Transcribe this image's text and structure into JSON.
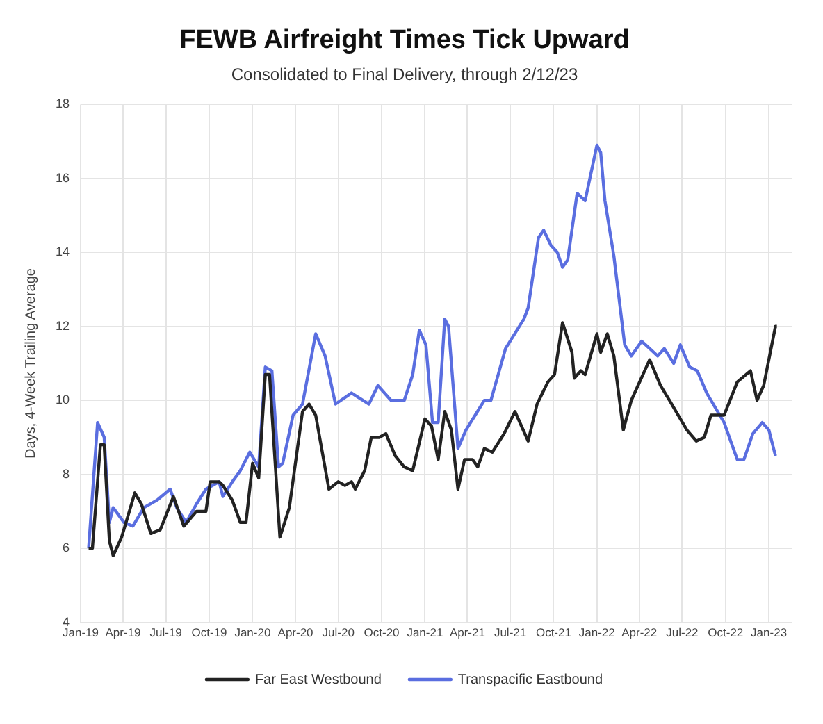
{
  "chart_data": {
    "type": "line",
    "title": "FEWB Airfreight Times Tick Upward",
    "subtitle": "Consolidated to Final Delivery, through 2/12/23",
    "ylabel": "Days, 4-Week Trailing Average",
    "xlim": [
      "2019-01-01",
      "2023-02-20"
    ],
    "xticks": [
      {
        "value": "2019-01-01",
        "label": "Jan-19"
      },
      {
        "value": "2019-04-01",
        "label": "Apr-19"
      },
      {
        "value": "2019-07-01",
        "label": "Jul-19"
      },
      {
        "value": "2019-10-01",
        "label": "Oct-19"
      },
      {
        "value": "2020-01-01",
        "label": "Jan-20"
      },
      {
        "value": "2020-04-01",
        "label": "Apr-20"
      },
      {
        "value": "2020-07-01",
        "label": "Jul-20"
      },
      {
        "value": "2020-10-01",
        "label": "Oct-20"
      },
      {
        "value": "2021-01-01",
        "label": "Jan-21"
      },
      {
        "value": "2021-04-01",
        "label": "Apr-21"
      },
      {
        "value": "2021-07-01",
        "label": "Jul-21"
      },
      {
        "value": "2021-10-01",
        "label": "Oct-21"
      },
      {
        "value": "2022-01-01",
        "label": "Jan-22"
      },
      {
        "value": "2022-04-01",
        "label": "Apr-22"
      },
      {
        "value": "2022-07-01",
        "label": "Jul-22"
      },
      {
        "value": "2022-10-01",
        "label": "Oct-22"
      },
      {
        "value": "2023-01-01",
        "label": "Jan-23"
      }
    ],
    "ylim": [
      4,
      18
    ],
    "yticks": [
      4,
      6,
      8,
      10,
      12,
      14,
      16,
      18
    ],
    "grid": true,
    "legend": "bottom",
    "marker": "none",
    "line_style": "solid",
    "series": [
      {
        "name": "Far East Westbound",
        "color": "#222222",
        "x": [
          "2019-01-18",
          "2019-01-26",
          "2019-02-12",
          "2019-02-20",
          "2019-03-03",
          "2019-03-11",
          "2019-03-29",
          "2019-04-26",
          "2019-05-10",
          "2019-05-30",
          "2019-06-19",
          "2019-07-17",
          "2019-08-08",
          "2019-09-04",
          "2019-09-24",
          "2019-10-03",
          "2019-10-22",
          "2019-10-30",
          "2019-11-19",
          "2019-12-06",
          "2019-12-18",
          "2020-01-01",
          "2020-01-14",
          "2020-01-28",
          "2020-02-06",
          "2020-02-28",
          "2020-03-19",
          "2020-04-16",
          "2020-04-30",
          "2020-05-14",
          "2020-06-11",
          "2020-07-01",
          "2020-07-15",
          "2020-07-29",
          "2020-08-06",
          "2020-08-26",
          "2020-09-09",
          "2020-09-26",
          "2020-10-10",
          "2020-10-30",
          "2020-11-18",
          "2020-12-06",
          "2021-01-01",
          "2021-01-15",
          "2021-01-29",
          "2021-02-12",
          "2021-02-26",
          "2021-03-12",
          "2021-03-26",
          "2021-04-12",
          "2021-04-23",
          "2021-05-07",
          "2021-05-24",
          "2021-06-18",
          "2021-07-11",
          "2021-07-25",
          "2021-08-08",
          "2021-08-27",
          "2021-09-19",
          "2021-10-03",
          "2021-10-20",
          "2021-11-09",
          "2021-11-14",
          "2021-11-28",
          "2021-12-07",
          "2022-01-01",
          "2022-01-09",
          "2022-01-23",
          "2022-02-06",
          "2022-02-26",
          "2022-03-15",
          "2022-04-23",
          "2022-05-16",
          "2022-06-04",
          "2022-07-11",
          "2022-07-31",
          "2022-08-17",
          "2022-08-31",
          "2022-09-28",
          "2022-10-26",
          "2022-11-23",
          "2022-12-07",
          "2022-12-21",
          "2023-01-15",
          "2023-01-18"
        ],
        "values": [
          6.0,
          6.0,
          8.8,
          8.8,
          6.2,
          5.8,
          6.3,
          7.5,
          7.2,
          6.4,
          6.5,
          7.4,
          6.6,
          7.0,
          7.0,
          7.8,
          7.8,
          7.7,
          7.3,
          6.7,
          6.7,
          8.3,
          7.9,
          10.7,
          10.7,
          6.3,
          7.1,
          9.7,
          9.9,
          9.6,
          7.6,
          7.8,
          7.7,
          7.8,
          7.6,
          8.1,
          9.0,
          9.0,
          9.1,
          8.5,
          8.2,
          8.1,
          9.5,
          9.3,
          8.4,
          9.7,
          9.2,
          7.6,
          8.4,
          8.4,
          8.2,
          8.7,
          8.6,
          9.1,
          9.7,
          9.3,
          8.9,
          9.9,
          10.5,
          10.7,
          12.1,
          11.3,
          10.6,
          10.8,
          10.7,
          11.8,
          11.3,
          11.8,
          11.2,
          9.2,
          10.0,
          11.1,
          10.4,
          10.0,
          9.2,
          8.9,
          9.0,
          9.6,
          9.6,
          10.5,
          10.8,
          10.0,
          10.4,
          12.0,
          12.0
        ]
      },
      {
        "name": "Transpacific Eastbound",
        "color": "#5a6ee0",
        "x": [
          "2019-01-18",
          "2019-02-06",
          "2019-02-20",
          "2019-03-03",
          "2019-03-11",
          "2019-04-03",
          "2019-04-22",
          "2019-05-15",
          "2019-06-12",
          "2019-07-10",
          "2019-07-24",
          "2019-08-13",
          "2019-09-04",
          "2019-09-24",
          "2019-10-22",
          "2019-10-30",
          "2019-11-19",
          "2019-12-06",
          "2019-12-26",
          "2020-01-14",
          "2020-01-28",
          "2020-02-11",
          "2020-02-25",
          "2020-03-05",
          "2020-03-27",
          "2020-04-16",
          "2020-05-14",
          "2020-06-03",
          "2020-06-25",
          "2020-07-29",
          "2020-09-04",
          "2020-09-23",
          "2020-10-21",
          "2020-11-18",
          "2020-12-06",
          "2020-12-20",
          "2021-01-03",
          "2021-01-17",
          "2021-01-29",
          "2021-02-12",
          "2021-02-20",
          "2021-03-12",
          "2021-03-29",
          "2021-05-07",
          "2021-05-21",
          "2021-06-21",
          "2021-07-30",
          "2021-08-08",
          "2021-08-30",
          "2021-09-10",
          "2021-09-25",
          "2021-10-09",
          "2021-10-20",
          "2021-10-31",
          "2021-11-20",
          "2021-12-07",
          "2022-01-01",
          "2022-01-09",
          "2022-01-18",
          "2022-02-06",
          "2022-03-01",
          "2022-03-15",
          "2022-04-06",
          "2022-04-23",
          "2022-05-10",
          "2022-05-24",
          "2022-06-13",
          "2022-06-27",
          "2022-07-17",
          "2022-08-02",
          "2022-08-22",
          "2022-09-28",
          "2022-10-26",
          "2022-11-09",
          "2022-11-28",
          "2022-12-18",
          "2023-01-01",
          "2023-01-15"
        ],
        "values": [
          6.0,
          9.4,
          9.0,
          6.7,
          7.1,
          6.7,
          6.6,
          7.1,
          7.3,
          7.6,
          7.1,
          6.7,
          7.2,
          7.6,
          7.8,
          7.4,
          7.8,
          8.1,
          8.6,
          8.2,
          10.9,
          10.8,
          8.2,
          8.3,
          9.6,
          9.9,
          11.8,
          11.2,
          9.9,
          10.2,
          9.9,
          10.4,
          10.0,
          10.0,
          10.7,
          11.9,
          11.5,
          9.4,
          9.4,
          12.2,
          12.0,
          8.7,
          9.2,
          10.0,
          10.0,
          11.4,
          12.2,
          12.5,
          14.4,
          14.6,
          14.2,
          14.0,
          13.6,
          13.8,
          15.6,
          15.4,
          16.9,
          16.7,
          15.4,
          13.9,
          11.5,
          11.2,
          11.6,
          11.4,
          11.2,
          11.4,
          11.0,
          11.5,
          10.9,
          10.8,
          10.2,
          9.4,
          8.4,
          8.4,
          9.1,
          9.4,
          9.2,
          8.5
        ]
      }
    ]
  }
}
